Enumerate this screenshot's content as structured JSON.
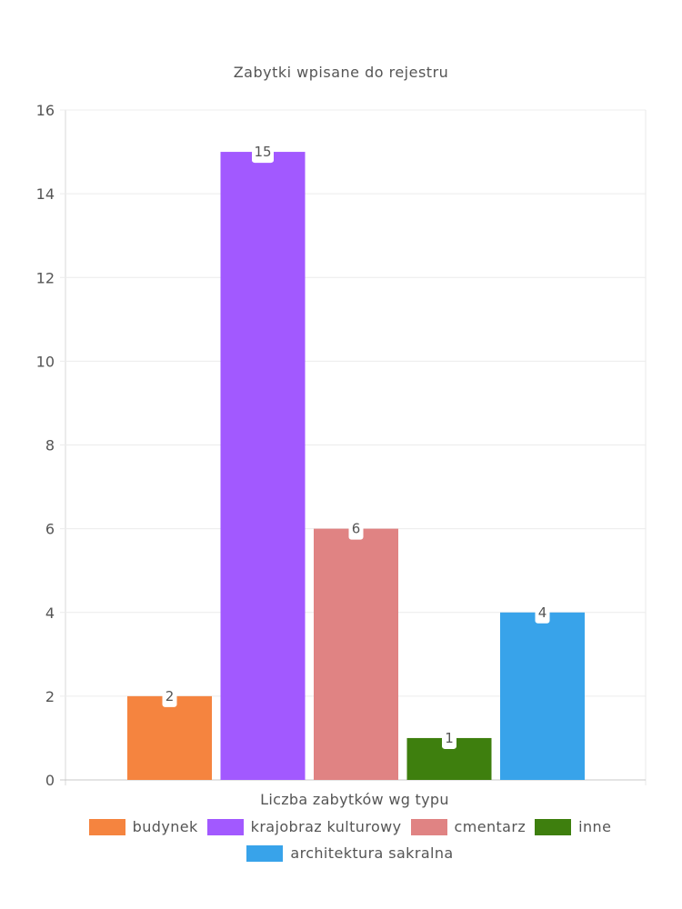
{
  "chart_data": {
    "type": "bar",
    "title": "Zabytki wpisane do rejestru",
    "xlabel": "Liczba zabytków wg typu",
    "ylabel": "",
    "ylim": [
      0,
      16
    ],
    "yticks": [
      0,
      2,
      4,
      6,
      8,
      10,
      12,
      14,
      16
    ],
    "grid": true,
    "legend_position": "bottom",
    "series": [
      {
        "name": "budynek",
        "value": 2,
        "color": "#f5843f"
      },
      {
        "name": "krajobraz kulturowy",
        "value": 15,
        "color": "#a259ff"
      },
      {
        "name": "cmentarz",
        "value": 6,
        "color": "#e08383"
      },
      {
        "name": "inne",
        "value": 1,
        "color": "#3e7f0e"
      },
      {
        "name": "architektura sakralna",
        "value": 4,
        "color": "#38a3ea"
      }
    ]
  }
}
